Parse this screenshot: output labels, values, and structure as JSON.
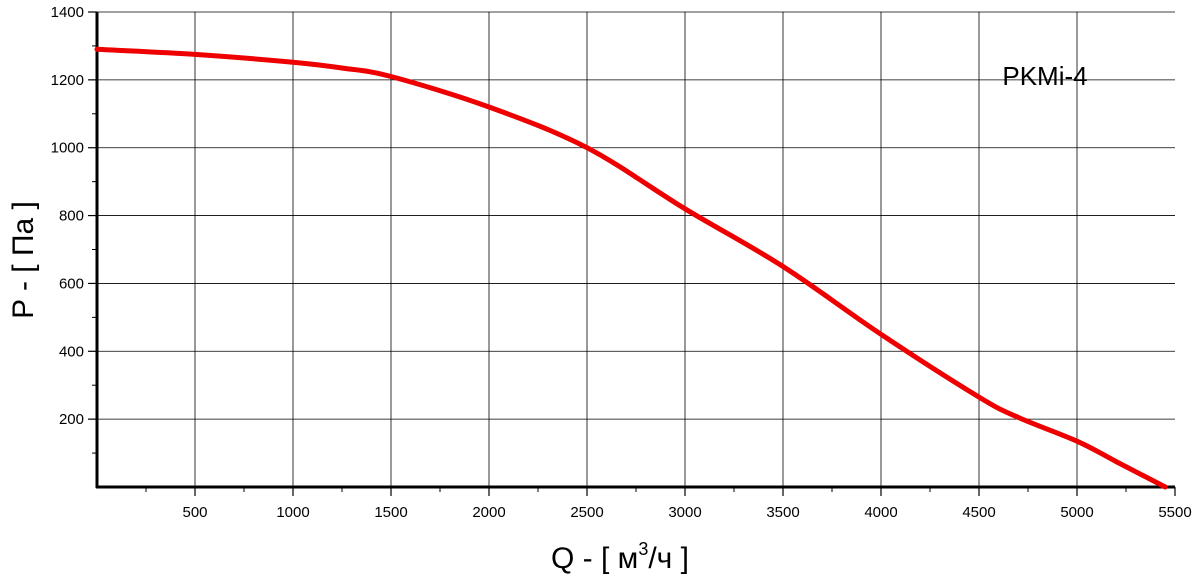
{
  "chart_data": {
    "type": "line",
    "title": "",
    "annotation": "PKMi-4",
    "xlabel": {
      "prefix": "Q - [ м",
      "sup": "3",
      "suffix": "/ч ]"
    },
    "ylabel": "P - [ Па ]",
    "xlim": [
      0,
      5500
    ],
    "ylim": [
      0,
      1400
    ],
    "x_ticks": [
      500,
      1000,
      1500,
      2000,
      2500,
      3000,
      3500,
      4000,
      4500,
      5000,
      5500
    ],
    "x_tick_labels": [
      "500",
      "1000",
      "1500",
      "2000",
      "2500",
      "3000",
      "3500",
      "4000",
      "4500",
      "5000",
      "5500"
    ],
    "y_ticks": [
      200,
      400,
      600,
      800,
      1000,
      1200,
      1400
    ],
    "y_tick_labels": [
      "200",
      "400",
      "600",
      "800",
      "1000",
      "1200",
      "1400"
    ],
    "grid": true,
    "line_color": "#ee0000",
    "series": [
      {
        "x": [
          0,
          500,
          1000,
          1250,
          1500,
          2000,
          2500,
          3000,
          3500,
          4000,
          4500,
          4700,
          5000,
          5200,
          5450
        ],
        "y": [
          1290,
          1275,
          1252,
          1235,
          1210,
          1120,
          1000,
          820,
          650,
          450,
          265,
          205,
          135,
          75,
          0
        ]
      }
    ]
  }
}
